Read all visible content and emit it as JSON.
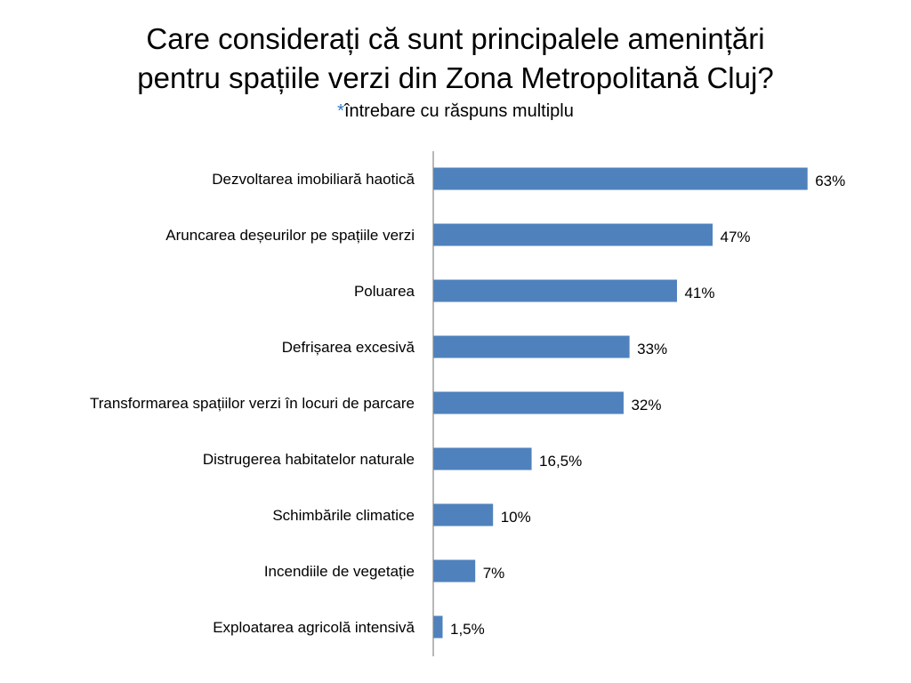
{
  "title": {
    "line1": "Care considerați că sunt principalele amenințări",
    "line2": "pentru spațiile verzi din Zona Metropolitană Cluj?",
    "subtitle_marker": "*",
    "subtitle_text": "întrebare cu răspuns multiplu"
  },
  "colors": {
    "bar": "#4f81bd",
    "axis": "#888888",
    "accent": "#2b78c2"
  },
  "chart_data": {
    "type": "bar",
    "orientation": "horizontal",
    "categories": [
      "Dezvoltarea imobiliară haotică",
      "Aruncarea deșeurilor pe spațiile verzi",
      "Poluarea",
      "Defrișarea excesivă",
      "Transformarea spațiilor verzi în locuri de parcare",
      "Distrugerea habitatelor naturale",
      "Schimbările climatice",
      "Incendiile de vegetație",
      "Exploatarea agricolă intensivă"
    ],
    "values": [
      63,
      47,
      41,
      33,
      32,
      16.5,
      10,
      7,
      1.5
    ],
    "value_labels": [
      "63%",
      "47%",
      "41%",
      "33%",
      "32%",
      "16,5%",
      "10%",
      "7%",
      "1,5%"
    ],
    "unit": "%",
    "xlim": [
      0,
      100
    ],
    "grid": false,
    "legend": "none"
  }
}
